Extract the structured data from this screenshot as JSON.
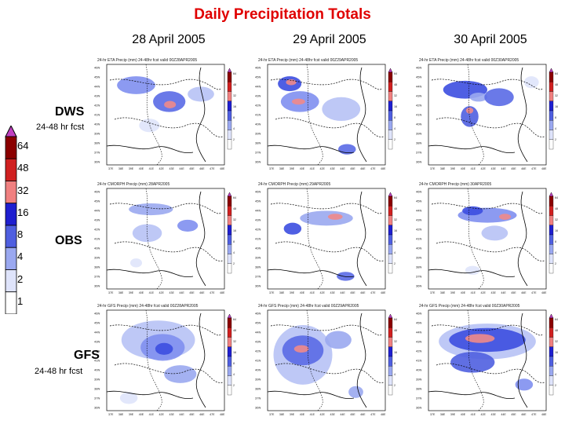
{
  "title": "Daily Precipitation Totals",
  "columns": [
    "28 April 2005",
    "29 April 2005",
    "30 April 2005"
  ],
  "rows": [
    {
      "label": "DWS",
      "sub": "24-48 hr fcst"
    },
    {
      "label": "OBS",
      "sub": ""
    },
    {
      "label": "GFS",
      "sub": "24-48 hr fcst"
    }
  ],
  "colorbar": {
    "levels": [
      "64",
      "48",
      "32",
      "16",
      "8",
      "4",
      "2",
      "1"
    ],
    "colors": [
      "#c040c0",
      "#8b0000",
      "#d02020",
      "#f08080",
      "#1f1fd0",
      "#4f5fe0",
      "#9aa8f0",
      "#dfe4fb",
      "#ffffff"
    ]
  },
  "panels": [
    [
      {
        "header": "24-hr ETA Precip (mm) 24-48hr fcst valid 00Z28APR2005"
      },
      {
        "header": "24-hr ETA Precip (mm) 24-48hr fcst valid 00Z29APR2005"
      },
      {
        "header": "24-hr ETA Precip (mm) 24-48hr fcst valid 00Z30APR2005"
      }
    ],
    [
      {
        "header": "24-hr CMORPH Precip (mm) 28APR2005"
      },
      {
        "header": "24-hr CMORPH Precip (mm) 29APR2005"
      },
      {
        "header": "24-hr CMORPH Precip (mm) 30APR2005"
      }
    ],
    [
      {
        "header": "24-hr GFS Precip (mm) 24-48hr fcst valid 00Z28APR2005"
      },
      {
        "header": "24-hr GFS Precip (mm) 24-48hr fcst valid 00Z29APR2005"
      },
      {
        "header": "24-hr GFS Precip (mm) 24-48hr fcst valid 00Z30APR2005"
      }
    ]
  ],
  "lat_ticks": [
    "46N",
    "45N",
    "44N",
    "43N",
    "42N",
    "41N",
    "40N",
    "39N",
    "38N",
    "37N",
    "36N"
  ],
  "lon_ticks": [
    "37E",
    "38E",
    "39E",
    "40E",
    "41E",
    "42E",
    "43E",
    "44E",
    "45E",
    "46E",
    "47E",
    "48E"
  ],
  "panel_scale": [
    "64",
    "48",
    "32",
    "16",
    "8",
    "4",
    "2"
  ]
}
